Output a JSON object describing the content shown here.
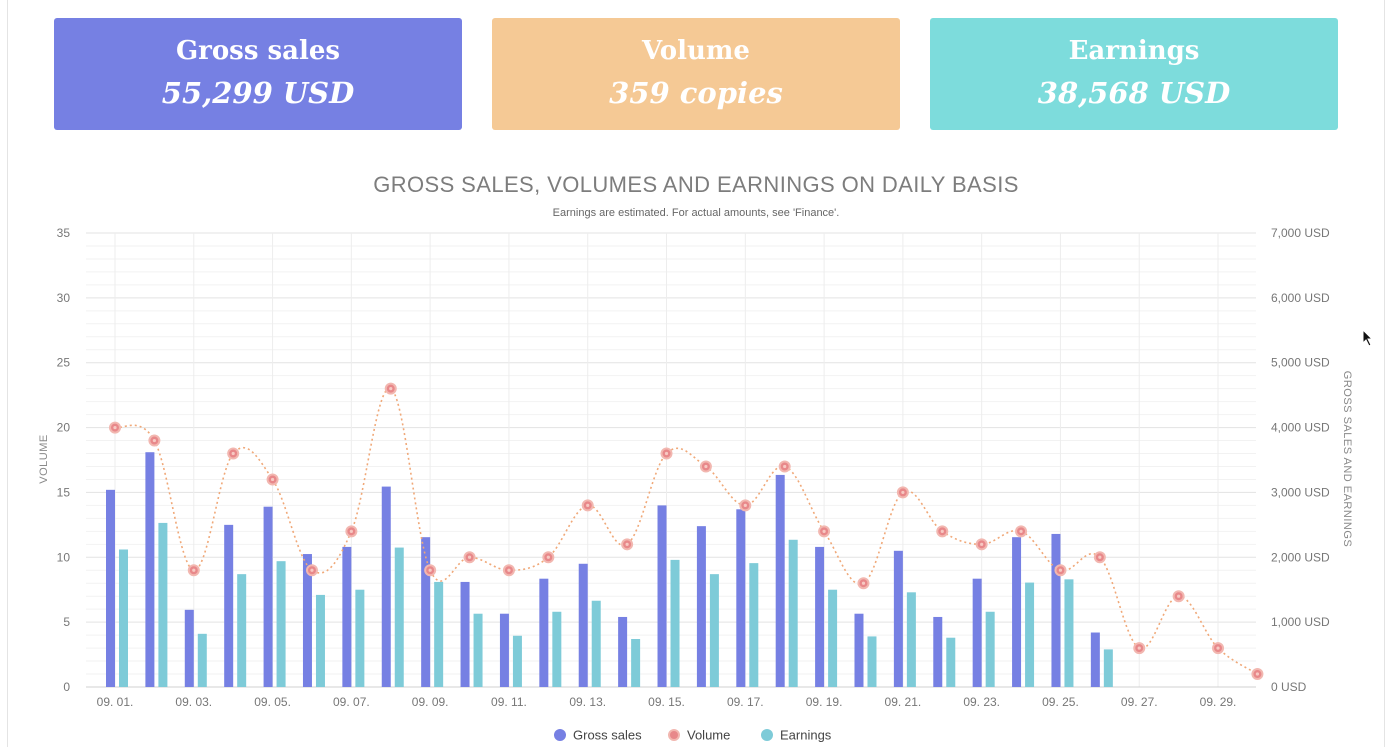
{
  "cards": {
    "gross": {
      "title": "Gross sales",
      "value": "55,299 USD",
      "color": "#7680e3"
    },
    "volume": {
      "title": "Volume",
      "value": "359 copies",
      "color": "#f5c995"
    },
    "earnings": {
      "title": "Earnings",
      "value": "38,568 USD",
      "color": "#7ddcdc"
    }
  },
  "chart_data": {
    "type": "bar",
    "title": "GROSS SALES, VOLUMES AND EARNINGS ON DAILY BASIS",
    "subtitle": "Earnings are estimated. For actual amounts, see 'Finance'.",
    "ylabel": "VOLUME",
    "y2label": "GROSS SALES AND EARNINGS",
    "ylim": [
      0,
      35
    ],
    "y2lim": [
      0,
      7000
    ],
    "y_ticks": [
      "0",
      "5",
      "10",
      "15",
      "20",
      "25",
      "30",
      "35"
    ],
    "y2_ticks": [
      "0 USD",
      "1,000 USD",
      "2,000 USD",
      "3,000 USD",
      "4,000 USD",
      "5,000 USD",
      "6,000 USD",
      "7,000 USD"
    ],
    "x_tick_labels": [
      "09. 01.",
      "09. 03.",
      "09. 05.",
      "09. 07.",
      "09. 09.",
      "09. 11.",
      "09. 13.",
      "09. 15.",
      "09. 17.",
      "09. 19.",
      "09. 21.",
      "09. 23.",
      "09. 25.",
      "09. 27.",
      "09. 29."
    ],
    "categories": [
      "09. 01.",
      "09. 02.",
      "09. 03.",
      "09. 04.",
      "09. 05.",
      "09. 06.",
      "09. 07.",
      "09. 08.",
      "09. 09.",
      "09. 10.",
      "09. 11.",
      "09. 12.",
      "09. 13.",
      "09. 14.",
      "09. 15.",
      "09. 16.",
      "09. 17.",
      "09. 18.",
      "09. 19.",
      "09. 20.",
      "09. 21.",
      "09. 22.",
      "09. 23.",
      "09. 24.",
      "09. 25.",
      "09. 26.",
      "09. 27.",
      "09. 28.",
      "09. 29.",
      "09. 30."
    ],
    "series": [
      {
        "name": "Gross sales",
        "type": "bar",
        "axis": "right",
        "color": "#7680e3",
        "values": [
          3040,
          3620,
          1190,
          2500,
          2780,
          2050,
          2160,
          3090,
          2310,
          1620,
          1130,
          1670,
          1900,
          1080,
          2800,
          2480,
          2740,
          3270,
          2160,
          1130,
          2100,
          1080,
          1670,
          2310,
          2360,
          840,
          0,
          0,
          0,
          0
        ]
      },
      {
        "name": "Volume",
        "type": "line",
        "axis": "left",
        "color": "#e8888a",
        "values": [
          20,
          19,
          9,
          18,
          16,
          9,
          12,
          23,
          9,
          10,
          9,
          10,
          14,
          11,
          18,
          17,
          14,
          17,
          12,
          8,
          15,
          12,
          11,
          12,
          9,
          10,
          3,
          7,
          3,
          1
        ]
      },
      {
        "name": "Earnings",
        "type": "bar",
        "axis": "right",
        "color": "#7ecbd8",
        "values": [
          2120,
          2530,
          820,
          1740,
          1940,
          1420,
          1500,
          2150,
          1620,
          1130,
          790,
          1160,
          1330,
          740,
          1960,
          1740,
          1910,
          2270,
          1500,
          780,
          1460,
          760,
          1160,
          1610,
          1660,
          580,
          0,
          0,
          0,
          0
        ]
      }
    ],
    "legend_position": "bottom-center",
    "grid": true
  }
}
